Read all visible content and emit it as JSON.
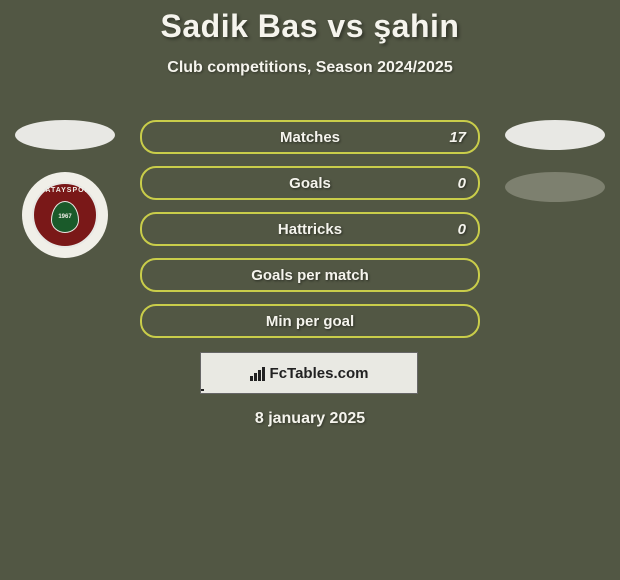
{
  "colors": {
    "background": "#525744",
    "text_light": "#f5f4ed",
    "pill_border": "#c9cd4a",
    "ellipse_white": "#e8e8e4",
    "ellipse_gray": "#7d806f",
    "badge_bg": "#f0efe8",
    "badge_inner": "#7a1818",
    "badge_leaf": "#1a5a2a",
    "footer_bg": "#e9e9e3"
  },
  "header": {
    "title": "Sadik Bas vs şahin",
    "subtitle": "Club competitions, Season 2024/2025",
    "title_fontsize": 32,
    "subtitle_fontsize": 16
  },
  "left_player": {
    "club_name": "HATAYSPOR",
    "club_year": "1967"
  },
  "stats": {
    "rows": [
      {
        "label": "Matches",
        "right": "17"
      },
      {
        "label": "Goals",
        "right": "0"
      },
      {
        "label": "Hattricks",
        "right": "0"
      },
      {
        "label": "Goals per match",
        "right": ""
      },
      {
        "label": "Min per goal",
        "right": ""
      }
    ],
    "label_fontsize": 15,
    "pill_height": 34,
    "pill_border_radius": 16
  },
  "footer": {
    "brand": "FcTables.com",
    "date": "8 january 2025"
  }
}
